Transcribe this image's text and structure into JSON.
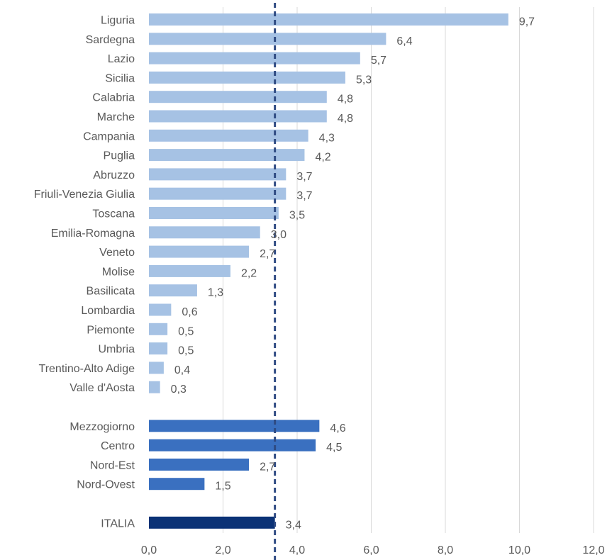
{
  "chart_data": {
    "type": "bar",
    "orientation": "horizontal",
    "title": "",
    "xlabel": "",
    "ylabel": "",
    "xlim": [
      0,
      12
    ],
    "x_ticks": [
      "0,0",
      "2,0",
      "4,0",
      "6,0",
      "8,0",
      "10,0",
      "12,0"
    ],
    "grid": "vertical",
    "legend": "none",
    "groups": [
      {
        "color": "#a6c2e4",
        "items": [
          {
            "label": "Liguria",
            "value": 9.7,
            "value_label": "9,7"
          },
          {
            "label": "Sardegna",
            "value": 6.4,
            "value_label": "6,4"
          },
          {
            "label": "Lazio",
            "value": 5.7,
            "value_label": "5,7"
          },
          {
            "label": "Sicilia",
            "value": 5.3,
            "value_label": "5,3"
          },
          {
            "label": "Calabria",
            "value": 4.8,
            "value_label": "4,8"
          },
          {
            "label": "Marche",
            "value": 4.8,
            "value_label": "4,8"
          },
          {
            "label": "Campania",
            "value": 4.3,
            "value_label": "4,3"
          },
          {
            "label": "Puglia",
            "value": 4.2,
            "value_label": "4,2"
          },
          {
            "label": "Abruzzo",
            "value": 3.7,
            "value_label": "3,7"
          },
          {
            "label": "Friuli-Venezia Giulia",
            "value": 3.7,
            "value_label": "3,7"
          },
          {
            "label": "Toscana",
            "value": 3.5,
            "value_label": "3,5"
          },
          {
            "label": "Emilia-Romagna",
            "value": 3.0,
            "value_label": "3,0"
          },
          {
            "label": "Veneto",
            "value": 2.7,
            "value_label": "2,7"
          },
          {
            "label": "Molise",
            "value": 2.2,
            "value_label": "2,2"
          },
          {
            "label": "Basilicata",
            "value": 1.3,
            "value_label": "1,3"
          },
          {
            "label": "Lombardia",
            "value": 0.6,
            "value_label": "0,6"
          },
          {
            "label": "Piemonte",
            "value": 0.5,
            "value_label": "0,5"
          },
          {
            "label": "Umbria",
            "value": 0.5,
            "value_label": "0,5"
          },
          {
            "label": "Trentino-Alto Adige",
            "value": 0.4,
            "value_label": "0,4"
          },
          {
            "label": "Valle d'Aosta",
            "value": 0.3,
            "value_label": "0,3"
          }
        ]
      },
      {
        "color": "#3a70c0",
        "items": [
          {
            "label": "Mezzogiorno",
            "value": 4.6,
            "value_label": "4,6"
          },
          {
            "label": "Centro",
            "value": 4.5,
            "value_label": "4,5"
          },
          {
            "label": "Nord-Est",
            "value": 2.7,
            "value_label": "2,7"
          },
          {
            "label": "Nord-Ovest",
            "value": 1.5,
            "value_label": "1,5"
          }
        ]
      },
      {
        "color": "#0b3276",
        "items": [
          {
            "label": "ITALIA",
            "value": 3.4,
            "value_label": "3,4"
          }
        ]
      }
    ],
    "reference_line": {
      "value": 3.4,
      "style": "dashed",
      "color": "#2e4a82"
    }
  }
}
